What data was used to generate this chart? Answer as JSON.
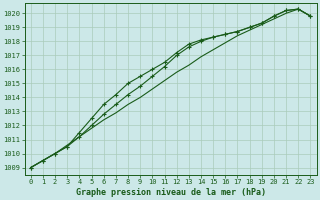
{
  "title": "Graphe pression niveau de la mer (hPa)",
  "yticks": [
    1009,
    1010,
    1011,
    1012,
    1013,
    1014,
    1015,
    1016,
    1017,
    1018,
    1019,
    1020
  ],
  "xticks": [
    0,
    1,
    2,
    3,
    4,
    5,
    6,
    7,
    8,
    9,
    10,
    11,
    12,
    13,
    14,
    15,
    16,
    17,
    18,
    19,
    20,
    21,
    22,
    23
  ],
  "bg_color": "#cce8e8",
  "grid_color": "#aaccbb",
  "line_color": "#1a5c1a",
  "line1": [
    1009.0,
    1009.5,
    1010.0,
    1010.5,
    1011.2,
    1012.0,
    1012.8,
    1013.5,
    1014.2,
    1014.8,
    1015.5,
    1016.2,
    1017.0,
    1017.6,
    1018.0,
    1018.3,
    1018.5,
    1018.7,
    1019.0,
    1019.3,
    1019.8,
    1020.2,
    1020.3,
    1019.8
  ],
  "line2": [
    1009.0,
    1009.5,
    1010.0,
    1010.5,
    1011.5,
    1012.5,
    1013.5,
    1014.2,
    1015.0,
    1015.5,
    1016.0,
    1016.5,
    1017.2,
    1017.8,
    1018.1,
    1018.3,
    1018.5,
    1018.7,
    1019.0,
    1019.3,
    1019.8,
    1020.2,
    1020.3,
    1019.8
  ],
  "line3": [
    1009.0,
    1009.5,
    1010.0,
    1010.6,
    1011.2,
    1011.8,
    1012.4,
    1012.9,
    1013.5,
    1014.0,
    1014.6,
    1015.2,
    1015.8,
    1016.3,
    1016.9,
    1017.4,
    1017.9,
    1018.4,
    1018.8,
    1019.2,
    1019.6,
    1020.0,
    1020.3,
    1019.8
  ],
  "marker": "+",
  "marker_size": 3.5,
  "lw": 0.8
}
